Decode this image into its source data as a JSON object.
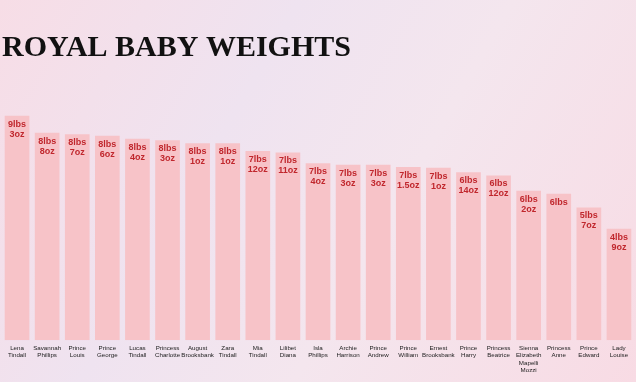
{
  "chart_data": {
    "type": "bar",
    "title": "ROYAL BABY WEIGHTS",
    "categories": [
      "Lena Tindall",
      "Savannah Phillips",
      "Prince Louis",
      "Prince George",
      "Lucas Tindall",
      "Princess Charlotte",
      "August Brooksbank",
      "Zara Tindall",
      "Mia Tindall",
      "Lilibet Diana",
      "Isla Phillips",
      "Archie Harrison",
      "Prince Andrew",
      "Prince William",
      "Ernest Brooksbank",
      "Prince Harry",
      "Princess Beatrice",
      "Sienna Elizabeth Mapelli Mozzi",
      "Princess Anne",
      "Prince Edward",
      "Lady Louise"
    ],
    "values": [
      9.1875,
      8.5,
      8.4375,
      8.375,
      8.25,
      8.1875,
      8.0625,
      8.0625,
      7.75,
      7.6875,
      7.25,
      7.1875,
      7.1875,
      7.09375,
      7.0625,
      6.875,
      6.75,
      6.125,
      6,
      5.4375,
      4.5625
    ],
    "value_labels": [
      "9lbs 3oz",
      "8lbs 8oz",
      "8lbs 7oz",
      "8lbs 6oz",
      "8lbs 4oz",
      "8lbs 3oz",
      "8lbs 1oz",
      "8lbs 1oz",
      "7lbs 12oz",
      "7lbs 11oz",
      "7lbs 4oz",
      "7lbs 3oz",
      "7lbs 3oz",
      "7lbs 1.5oz",
      "7lbs 1oz",
      "6lbs 14oz",
      "6lbs 12oz",
      "6lbs 2oz",
      "6lbs",
      "5lbs 7oz",
      "4lbs 9oz"
    ],
    "color": "#f7c3c8",
    "ylim": [
      0,
      10
    ],
    "yticks": [
      0,
      10
    ],
    "grid": false,
    "data_labels": true,
    "tick_labels": "x"
  }
}
